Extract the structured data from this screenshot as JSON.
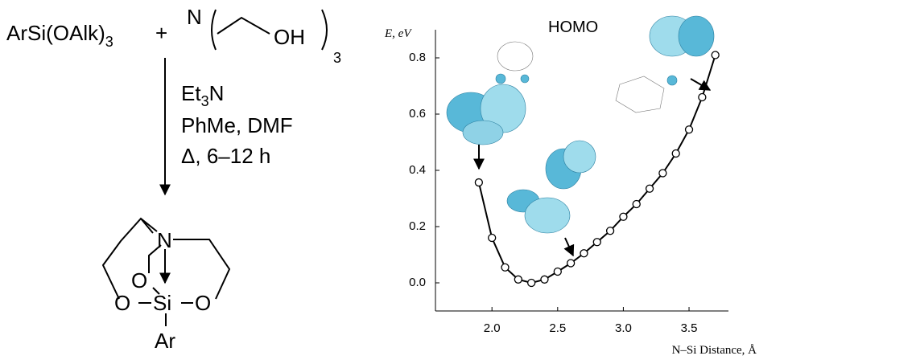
{
  "scheme": {
    "reactant_1": "ArSi(OAlk)",
    "reactant_1_subscript": "3",
    "plus": "+",
    "amine_n": "N",
    "amine_oh": "OH",
    "amine_subscript": "3",
    "condition_1": {
      "text": "Et",
      "sub": "3",
      "tail": "N"
    },
    "condition_2": "PhMe, DMF",
    "condition_3": "Δ, 6–12 h",
    "product": {
      "n": "N",
      "o_top": "O",
      "o_left": "O",
      "si": "Si",
      "o_right": "O",
      "ar": "Ar"
    }
  },
  "chart_data": {
    "type": "line",
    "y_label": "E, eV",
    "x_label": "N–Si Distance, Å",
    "annotation": "HOMO",
    "x": [
      1.9,
      2.0,
      2.1,
      2.2,
      2.3,
      2.4,
      2.5,
      2.6,
      2.7,
      2.8,
      2.9,
      3.0,
      3.1,
      3.2,
      3.3,
      3.4,
      3.5,
      3.6,
      3.7
    ],
    "series": [
      {
        "name": "HOMO",
        "color": "#000000",
        "values": [
          0.357,
          0.16,
          0.055,
          0.012,
          0.0,
          0.012,
          0.04,
          0.07,
          0.105,
          0.145,
          0.185,
          0.235,
          0.28,
          0.335,
          0.39,
          0.46,
          0.545,
          0.66,
          0.81
        ]
      }
    ],
    "xlim": [
      1.57,
      3.8
    ],
    "ylim": [
      -0.1,
      0.9
    ],
    "xticks": [
      {
        "value": 2,
        "label": "2.0"
      },
      2.5,
      {
        "value": 3,
        "label": "3.0"
      },
      3.5
    ],
    "yticks": [
      {
        "value": 0,
        "label": "0.0"
      },
      0.2,
      0.4,
      0.6,
      0.8
    ]
  }
}
